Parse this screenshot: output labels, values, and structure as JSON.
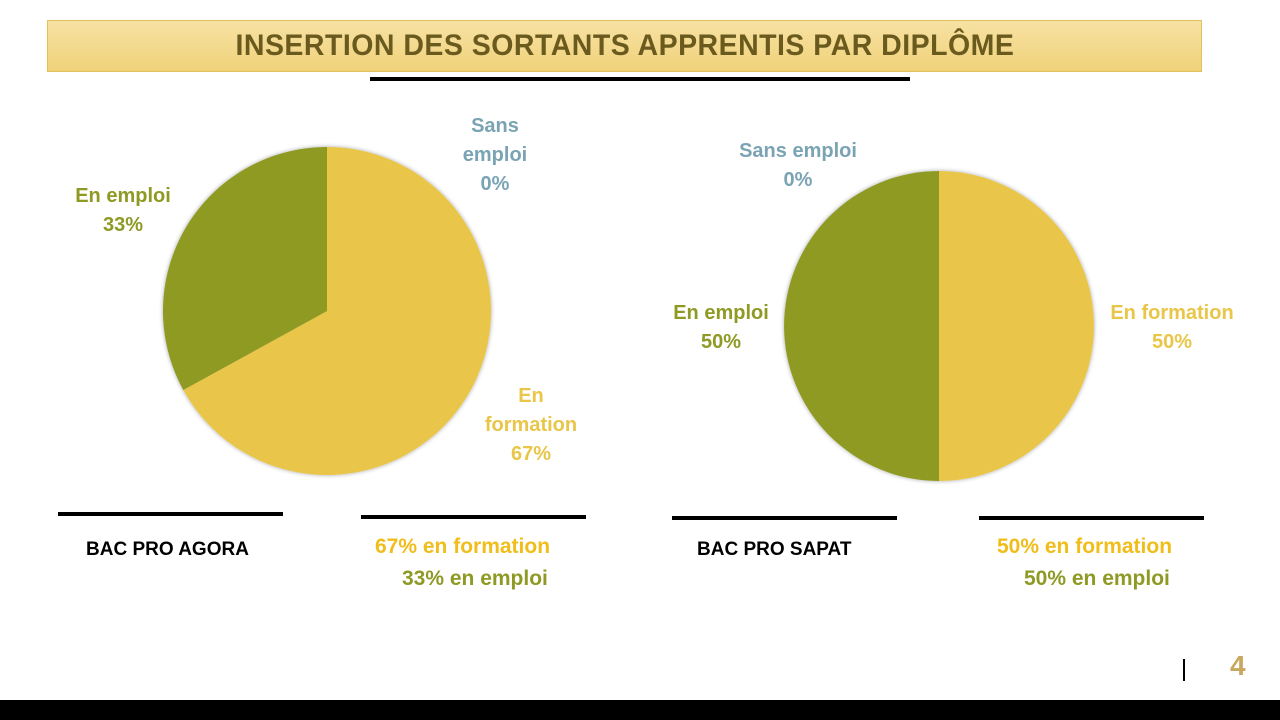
{
  "slide": {
    "title": "INSERTION DES SORTANTS APPRENTIS PAR DIPLÔME",
    "page_number": "4"
  },
  "colors": {
    "en_emploi": "#8e9a24",
    "en_formation": "#e9c548",
    "sans_emploi": "#7aa3b4",
    "summary_formation": "#f0bd1a",
    "summary_emploi": "#8e9a24"
  },
  "chart_data": [
    {
      "type": "pie",
      "title": "",
      "series": [
        {
          "name": "BAC PRO AGORA",
          "values": [
            0,
            33,
            67
          ]
        }
      ],
      "categories": [
        "Sans emploi",
        "En emploi",
        "En formation"
      ],
      "labels": [
        {
          "lines": [
            "Sans",
            "emploi",
            "0%"
          ],
          "category": "Sans emploi"
        },
        {
          "lines": [
            "En emploi",
            "33%"
          ],
          "category": "En emploi"
        },
        {
          "lines": [
            "En",
            "formation",
            "67%"
          ],
          "category": "En formation"
        }
      ],
      "caption": "BAC PRO AGORA",
      "summary": [
        "67% en formation",
        "33% en emploi"
      ]
    },
    {
      "type": "pie",
      "title": "",
      "series": [
        {
          "name": "BAC PRO SAPAT",
          "values": [
            0,
            50,
            50
          ]
        }
      ],
      "categories": [
        "Sans emploi",
        "En emploi",
        "En formation"
      ],
      "labels": [
        {
          "lines": [
            "Sans emploi",
            "0%"
          ],
          "category": "Sans emploi"
        },
        {
          "lines": [
            "En emploi",
            "50%"
          ],
          "category": "En emploi"
        },
        {
          "lines": [
            "En formation",
            "50%"
          ],
          "category": "En formation"
        }
      ],
      "caption": "BAC PRO SAPAT",
      "summary": [
        "50% en formation",
        "50% en emploi"
      ]
    }
  ]
}
